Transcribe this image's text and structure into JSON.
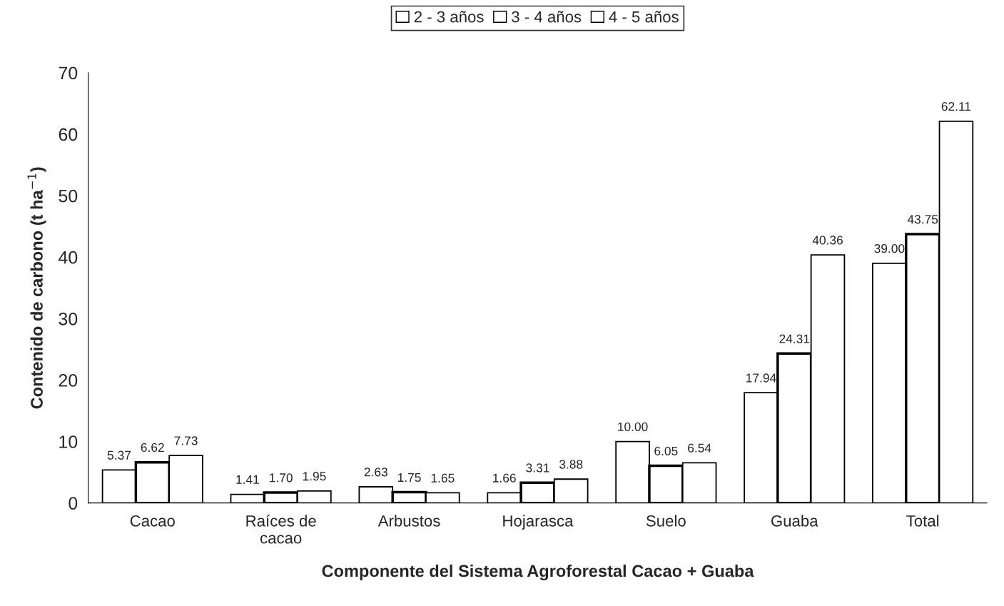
{
  "chart_data": {
    "type": "bar",
    "xlabel": "Componente del Sistema Agroforestal Cacao + Guaba",
    "ylabel": "Contenido de carbono (t ha$^{−1}$)",
    "categories": [
      "Cacao",
      "Raíces de cacao",
      "Arbustos",
      "Hojarasca",
      "Suelo",
      "Guaba",
      "Total"
    ],
    "series": [
      {
        "name": "2 - 3 años",
        "color": "#ffffff",
        "values": [
          5.37,
          1.41,
          2.63,
          1.66,
          10.0,
          17.94,
          39.0
        ],
        "value_labels": [
          "5.37",
          "1.41",
          "2.63",
          "1.66",
          "10.00",
          "17.94",
          "39.00"
        ]
      },
      {
        "name": "3 - 4 años",
        "color": "#ffffff",
        "values": [
          6.62,
          1.7,
          1.75,
          3.31,
          6.05,
          24.31,
          43.75
        ],
        "value_labels": [
          "6.62",
          "1.70",
          "1.75",
          "3.31",
          "6.05",
          "24.31",
          "43.75"
        ]
      },
      {
        "name": "4 - 5 años",
        "color": "#ffffff",
        "values": [
          7.73,
          1.95,
          1.65,
          3.88,
          6.54,
          40.36,
          62.11
        ],
        "value_labels": [
          "7.73",
          "1.95",
          "1.65",
          "3.88",
          "6.54",
          "40.36",
          "62.11"
        ]
      }
    ],
    "ylim": [
      0,
      70
    ],
    "yticks": [
      0,
      10,
      20,
      30,
      40,
      50,
      60,
      70
    ],
    "grid": false,
    "legend": "top"
  }
}
